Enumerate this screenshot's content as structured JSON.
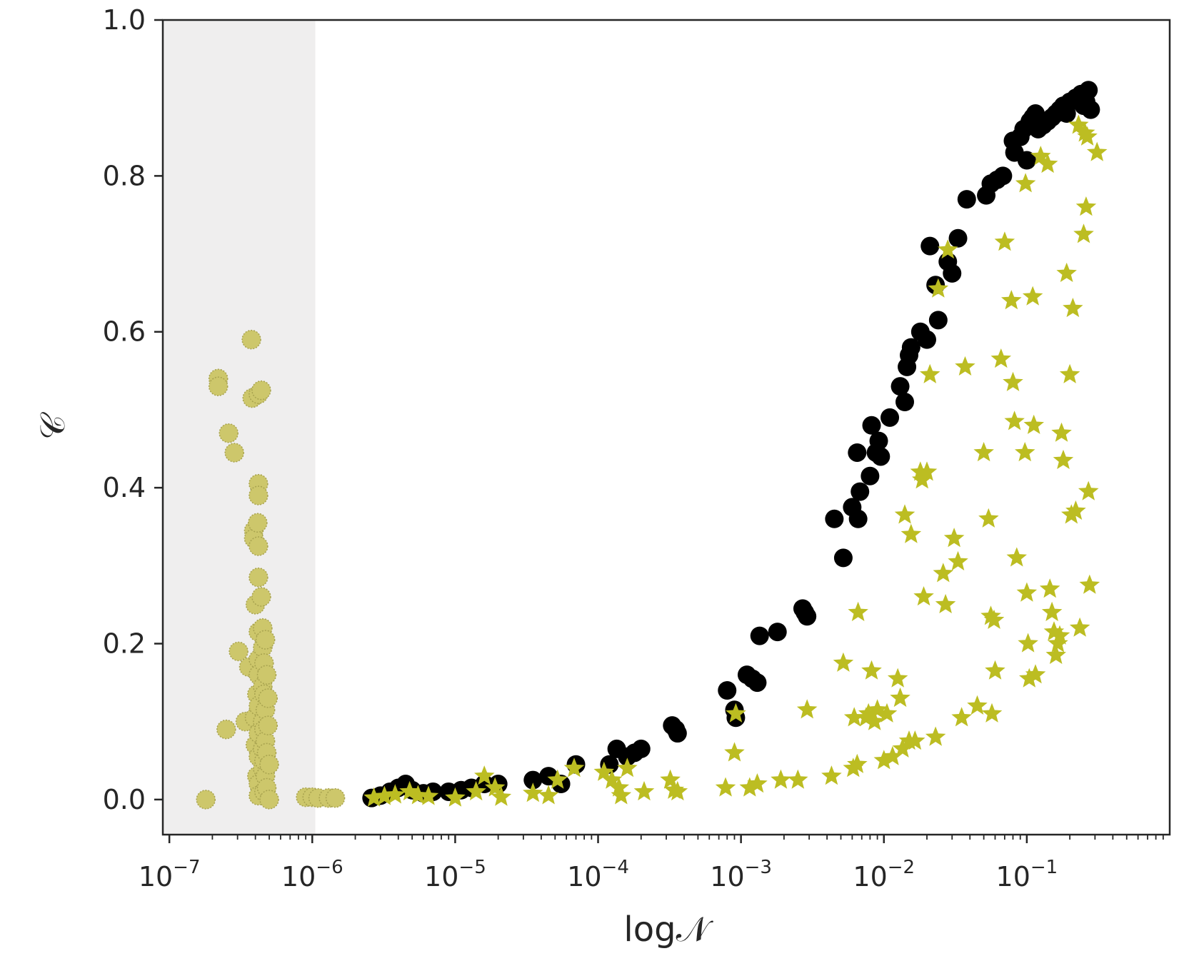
{
  "chart_data": {
    "type": "scatter",
    "xscale": "log",
    "xlabel": "log𝒩",
    "ylabel": "𝒞",
    "xlim": [
      9e-08,
      1.0
    ],
    "ylim": [
      -0.045,
      1.0
    ],
    "grid": false,
    "shaded_x_range": [
      9e-08,
      1.05e-06
    ],
    "shaded_color": "#efeeee",
    "x_ticks": [
      {
        "value": 1e-07,
        "base": "10",
        "exp": "−7"
      },
      {
        "value": 1e-06,
        "base": "10",
        "exp": "−6"
      },
      {
        "value": 1e-05,
        "base": "10",
        "exp": "−5"
      },
      {
        "value": 0.0001,
        "base": "10",
        "exp": "−4"
      },
      {
        "value": 0.001,
        "base": "10",
        "exp": "−3"
      },
      {
        "value": 0.01,
        "base": "10",
        "exp": "−2"
      },
      {
        "value": 0.1,
        "base": "10",
        "exp": "−1"
      }
    ],
    "y_ticks": [
      {
        "value": 0.0,
        "label": "0.0"
      },
      {
        "value": 0.2,
        "label": "0.2"
      },
      {
        "value": 0.4,
        "label": "0.4"
      },
      {
        "value": 0.6,
        "label": "0.6"
      },
      {
        "value": 0.8,
        "label": "0.8"
      },
      {
        "value": 1.0,
        "label": "1.0"
      }
    ],
    "series": [
      {
        "marker": "circle",
        "color": "#000000",
        "points": [
          [
            2.6e-06,
            0.002
          ],
          [
            3e-06,
            0.005
          ],
          [
            3.5e-06,
            0.01
          ],
          [
            4e-06,
            0.015
          ],
          [
            4.5e-06,
            0.02
          ],
          [
            5e-06,
            0.012
          ],
          [
            6e-06,
            0.008
          ],
          [
            7e-06,
            0.01
          ],
          [
            9e-06,
            0.01
          ],
          [
            1.1e-05,
            0.012
          ],
          [
            1.3e-05,
            0.015
          ],
          [
            1.6e-05,
            0.02
          ],
          [
            2e-05,
            0.02
          ],
          [
            3.5e-05,
            0.025
          ],
          [
            4.5e-05,
            0.03
          ],
          [
            5.5e-05,
            0.02
          ],
          [
            7e-05,
            0.045
          ],
          [
            0.00012,
            0.045
          ],
          [
            0.000135,
            0.065
          ],
          [
            0.00016,
            0.055
          ],
          [
            0.00018,
            0.06
          ],
          [
            0.0002,
            0.065
          ],
          [
            0.00033,
            0.095
          ],
          [
            0.00035,
            0.09
          ],
          [
            0.00036,
            0.085
          ],
          [
            0.0008,
            0.14
          ],
          [
            0.0009,
            0.115
          ],
          [
            0.00092,
            0.105
          ],
          [
            0.0011,
            0.16
          ],
          [
            0.0012,
            0.155
          ],
          [
            0.0013,
            0.15
          ],
          [
            0.00135,
            0.21
          ],
          [
            0.0018,
            0.215
          ],
          [
            0.0027,
            0.245
          ],
          [
            0.0028,
            0.24
          ],
          [
            0.0029,
            0.235
          ],
          [
            0.0045,
            0.36
          ],
          [
            0.0052,
            0.31
          ],
          [
            0.006,
            0.375
          ],
          [
            0.0065,
            0.445
          ],
          [
            0.0066,
            0.36
          ],
          [
            0.0068,
            0.395
          ],
          [
            0.008,
            0.415
          ],
          [
            0.0082,
            0.48
          ],
          [
            0.0088,
            0.445
          ],
          [
            0.0092,
            0.46
          ],
          [
            0.0095,
            0.44
          ],
          [
            0.011,
            0.49
          ],
          [
            0.013,
            0.53
          ],
          [
            0.014,
            0.51
          ],
          [
            0.0145,
            0.555
          ],
          [
            0.015,
            0.57
          ],
          [
            0.0155,
            0.58
          ],
          [
            0.018,
            0.6
          ],
          [
            0.02,
            0.59
          ],
          [
            0.021,
            0.71
          ],
          [
            0.023,
            0.66
          ],
          [
            0.024,
            0.615
          ],
          [
            0.028,
            0.69
          ],
          [
            0.03,
            0.675
          ],
          [
            0.033,
            0.72
          ],
          [
            0.038,
            0.77
          ],
          [
            0.052,
            0.775
          ],
          [
            0.056,
            0.79
          ],
          [
            0.062,
            0.795
          ],
          [
            0.068,
            0.8
          ],
          [
            0.08,
            0.845
          ],
          [
            0.082,
            0.83
          ],
          [
            0.09,
            0.85
          ],
          [
            0.095,
            0.86
          ],
          [
            0.1,
            0.82
          ],
          [
            0.105,
            0.87
          ],
          [
            0.11,
            0.875
          ],
          [
            0.115,
            0.88
          ],
          [
            0.12,
            0.86
          ],
          [
            0.13,
            0.865
          ],
          [
            0.14,
            0.87
          ],
          [
            0.15,
            0.875
          ],
          [
            0.16,
            0.88
          ],
          [
            0.17,
            0.885
          ],
          [
            0.18,
            0.89
          ],
          [
            0.19,
            0.88
          ],
          [
            0.2,
            0.895
          ],
          [
            0.22,
            0.9
          ],
          [
            0.24,
            0.905
          ],
          [
            0.25,
            0.89
          ],
          [
            0.26,
            0.895
          ],
          [
            0.27,
            0.91
          ],
          [
            0.28,
            0.885
          ]
        ]
      },
      {
        "marker": "star",
        "color": "#bcbd22",
        "points": [
          [
            2.7e-06,
            0.002
          ],
          [
            3.2e-06,
            0.004
          ],
          [
            3.8e-06,
            0.006
          ],
          [
            4.8e-06,
            0.01
          ],
          [
            5.5e-06,
            0.005
          ],
          [
            6.5e-06,
            0.004
          ],
          [
            1e-05,
            0.002
          ],
          [
            1.4e-05,
            0.01
          ],
          [
            1.6e-05,
            0.03
          ],
          [
            1.9e-05,
            0.015
          ],
          [
            2.1e-05,
            0.003
          ],
          [
            3.5e-05,
            0.008
          ],
          [
            4.5e-05,
            0.005
          ],
          [
            5.2e-05,
            0.025
          ],
          [
            6.8e-05,
            0.04
          ],
          [
            0.00011,
            0.035
          ],
          [
            0.000125,
            0.025
          ],
          [
            0.00014,
            0.015
          ],
          [
            0.000145,
            0.005
          ],
          [
            0.00016,
            0.04
          ],
          [
            0.00021,
            0.01
          ],
          [
            0.00032,
            0.025
          ],
          [
            0.00034,
            0.012
          ],
          [
            0.00036,
            0.01
          ],
          [
            0.00078,
            0.015
          ],
          [
            0.0009,
            0.06
          ],
          [
            0.00092,
            0.11
          ],
          [
            0.00115,
            0.015
          ],
          [
            0.0013,
            0.02
          ],
          [
            0.0019,
            0.025
          ],
          [
            0.0025,
            0.025
          ],
          [
            0.0029,
            0.115
          ],
          [
            0.0043,
            0.03
          ],
          [
            0.0052,
            0.175
          ],
          [
            0.0061,
            0.04
          ],
          [
            0.0062,
            0.105
          ],
          [
            0.0065,
            0.045
          ],
          [
            0.0066,
            0.24
          ],
          [
            0.0075,
            0.105
          ],
          [
            0.0078,
            0.11
          ],
          [
            0.0082,
            0.165
          ],
          [
            0.0086,
            0.1
          ],
          [
            0.009,
            0.115
          ],
          [
            0.01,
            0.05
          ],
          [
            0.0105,
            0.11
          ],
          [
            0.0115,
            0.055
          ],
          [
            0.0125,
            0.155
          ],
          [
            0.013,
            0.13
          ],
          [
            0.0135,
            0.065
          ],
          [
            0.014,
            0.365
          ],
          [
            0.015,
            0.075
          ],
          [
            0.0155,
            0.34
          ],
          [
            0.0165,
            0.075
          ],
          [
            0.018,
            0.42
          ],
          [
            0.0185,
            0.41
          ],
          [
            0.019,
            0.26
          ],
          [
            0.02,
            0.42
          ],
          [
            0.021,
            0.545
          ],
          [
            0.023,
            0.08
          ],
          [
            0.024,
            0.655
          ],
          [
            0.026,
            0.29
          ],
          [
            0.027,
            0.25
          ],
          [
            0.028,
            0.705
          ],
          [
            0.031,
            0.335
          ],
          [
            0.033,
            0.305
          ],
          [
            0.035,
            0.105
          ],
          [
            0.037,
            0.555
          ],
          [
            0.045,
            0.12
          ],
          [
            0.05,
            0.445
          ],
          [
            0.054,
            0.36
          ],
          [
            0.056,
            0.235
          ],
          [
            0.057,
            0.11
          ],
          [
            0.059,
            0.23
          ],
          [
            0.06,
            0.165
          ],
          [
            0.066,
            0.565
          ],
          [
            0.07,
            0.715
          ],
          [
            0.078,
            0.64
          ],
          [
            0.08,
            0.535
          ],
          [
            0.082,
            0.485
          ],
          [
            0.085,
            0.31
          ],
          [
            0.097,
            0.445
          ],
          [
            0.098,
            0.79
          ],
          [
            0.1,
            0.265
          ],
          [
            0.102,
            0.2
          ],
          [
            0.104,
            0.155
          ],
          [
            0.11,
            0.645
          ],
          [
            0.112,
            0.48
          ],
          [
            0.115,
            0.16
          ],
          [
            0.125,
            0.825
          ],
          [
            0.14,
            0.815
          ],
          [
            0.145,
            0.27
          ],
          [
            0.15,
            0.24
          ],
          [
            0.155,
            0.215
          ],
          [
            0.16,
            0.185
          ],
          [
            0.165,
            0.2
          ],
          [
            0.17,
            0.21
          ],
          [
            0.175,
            0.47
          ],
          [
            0.18,
            0.435
          ],
          [
            0.19,
            0.675
          ],
          [
            0.2,
            0.545
          ],
          [
            0.205,
            0.365
          ],
          [
            0.21,
            0.63
          ],
          [
            0.22,
            0.37
          ],
          [
            0.23,
            0.865
          ],
          [
            0.235,
            0.22
          ],
          [
            0.25,
            0.725
          ],
          [
            0.255,
            0.855
          ],
          [
            0.26,
            0.76
          ],
          [
            0.265,
            0.85
          ],
          [
            0.27,
            0.395
          ],
          [
            0.275,
            0.275
          ],
          [
            0.31,
            0.83
          ]
        ]
      },
      {
        "marker": "circle",
        "color": "#cdc76b",
        "points": [
          [
            1.8e-07,
            0.0
          ],
          [
            2.2e-07,
            0.54
          ],
          [
            2.2e-07,
            0.53
          ],
          [
            2.5e-07,
            0.09
          ],
          [
            2.6e-07,
            0.47
          ],
          [
            2.85e-07,
            0.445
          ],
          [
            3.05e-07,
            0.19
          ],
          [
            3.4e-07,
            0.1
          ],
          [
            3.6e-07,
            0.17
          ],
          [
            3.75e-07,
            0.59
          ],
          [
            3.8e-07,
            0.515
          ],
          [
            3.9e-07,
            0.345
          ],
          [
            3.9e-07,
            0.335
          ],
          [
            3.95e-07,
            0.105
          ],
          [
            4e-07,
            0.25
          ],
          [
            4e-07,
            0.07
          ],
          [
            4.1e-07,
            0.135
          ],
          [
            4.1e-07,
            0.03
          ],
          [
            4.15e-07,
            0.355
          ],
          [
            4.2e-07,
            0.52
          ],
          [
            4.2e-07,
            0.405
          ],
          [
            4.2e-07,
            0.39
          ],
          [
            4.2e-07,
            0.325
          ],
          [
            4.2e-07,
            0.285
          ],
          [
            4.2e-07,
            0.215
          ],
          [
            4.2e-07,
            0.18
          ],
          [
            4.2e-07,
            0.16
          ],
          [
            4.2e-07,
            0.12
          ],
          [
            4.2e-07,
            0.085
          ],
          [
            4.2e-07,
            0.055
          ],
          [
            4.2e-07,
            0.02
          ],
          [
            4.2e-07,
            0.005
          ],
          [
            4.4e-07,
            0.525
          ],
          [
            4.4e-07,
            0.26
          ],
          [
            4.5e-07,
            0.22
          ],
          [
            4.5e-07,
            0.195
          ],
          [
            4.5e-07,
            0.145
          ],
          [
            4.5e-07,
            0.1
          ],
          [
            4.5e-07,
            0.065
          ],
          [
            4.5e-07,
            0.04
          ],
          [
            4.6e-07,
            0.175
          ],
          [
            4.6e-07,
            0.135
          ],
          [
            4.6e-07,
            0.09
          ],
          [
            4.6e-07,
            0.05
          ],
          [
            4.6e-07,
            0.01
          ],
          [
            4.7e-07,
            0.205
          ],
          [
            4.7e-07,
            0.115
          ],
          [
            4.7e-07,
            0.075
          ],
          [
            4.7e-07,
            0.03
          ],
          [
            4.8e-07,
            0.16
          ],
          [
            4.8e-07,
            0.06
          ],
          [
            4.8e-07,
            0.015
          ],
          [
            4.9e-07,
            0.13
          ],
          [
            4.9e-07,
            0.095
          ],
          [
            5e-07,
            0.0
          ],
          [
            5e-07,
            0.045
          ],
          [
            9e-07,
            0.003
          ],
          [
            1e-06,
            0.003
          ],
          [
            1.1e-06,
            0.002
          ],
          [
            1.3e-06,
            0.002
          ],
          [
            1.45e-06,
            0.002
          ]
        ]
      }
    ]
  }
}
